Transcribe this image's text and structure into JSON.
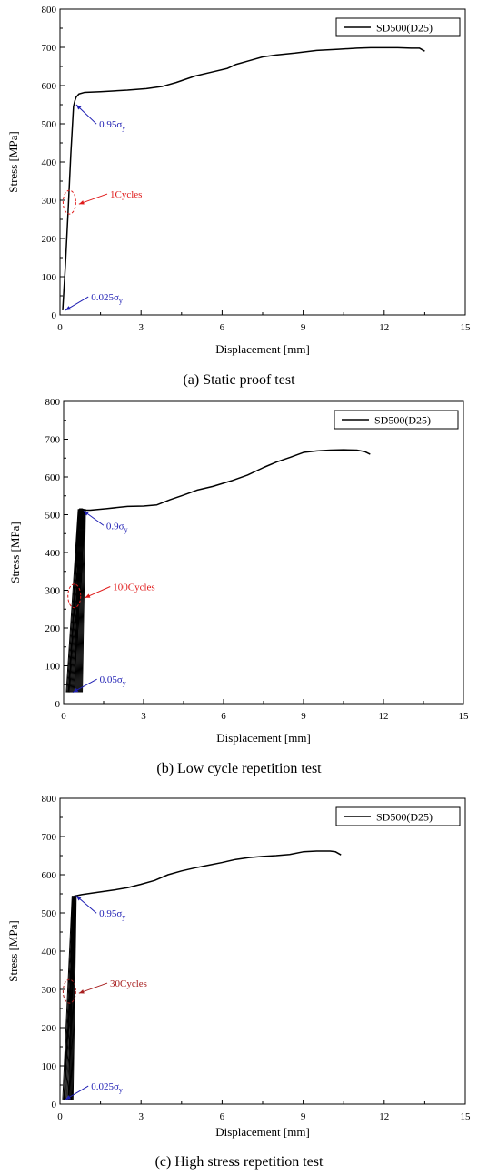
{
  "chart_data": [
    {
      "type": "line",
      "caption": "(a) Static proof test",
      "xlabel": "Displacement [mm]",
      "ylabel": "Stress [MPa]",
      "xlim": [
        0,
        15
      ],
      "ylim": [
        0,
        800
      ],
      "xticks": [
        0,
        3,
        6,
        9,
        12,
        15
      ],
      "yticks": [
        0,
        100,
        200,
        300,
        400,
        500,
        600,
        700,
        800
      ],
      "grid": false,
      "legend_position": "top-right",
      "series": [
        {
          "name": "SD500(D25)",
          "color": "#000000",
          "x": [
            0.1,
            0.2,
            0.3,
            0.4,
            0.5,
            0.55,
            0.6,
            0.7,
            0.9,
            1.5,
            2.5,
            3.2,
            3.8,
            4.3,
            5.0,
            5.6,
            6.2,
            6.5,
            7.0,
            7.5,
            8.0,
            8.7,
            9.5,
            10.3,
            11.0,
            11.5,
            12.0,
            12.5,
            13.0,
            13.3,
            13.5
          ],
          "y": [
            12,
            130,
            270,
            420,
            545,
            560,
            570,
            578,
            582,
            584,
            588,
            592,
            598,
            608,
            625,
            635,
            645,
            655,
            665,
            675,
            680,
            685,
            692,
            695,
            698,
            699,
            699,
            699,
            698,
            698,
            690
          ]
        }
      ],
      "cycle_loops": [],
      "annotations": [
        {
          "text": "0.95",
          "sigma": "σ",
          "sub": "y",
          "color": "#1f1fb4",
          "point": [
            0.6,
            550
          ],
          "label_at": [
            1.45,
            490
          ]
        },
        {
          "text": "1Cycles",
          "color": "#e01b1b",
          "point": [
            0.7,
            290
          ],
          "label_at": [
            1.85,
            307
          ],
          "circle": [
            0.35,
            295
          ]
        },
        {
          "text": "0.025",
          "sigma": "σ",
          "sub": "y",
          "color": "#1f1fb4",
          "point": [
            0.2,
            12
          ],
          "label_at": [
            1.15,
            38
          ]
        }
      ]
    },
    {
      "type": "line",
      "caption": "(b) Low cycle repetition test",
      "xlabel": "Displacement [mm]",
      "ylabel": "Stress [MPa]",
      "xlim": [
        0,
        15
      ],
      "ylim": [
        0,
        800
      ],
      "xticks": [
        0,
        3,
        6,
        9,
        12,
        15
      ],
      "yticks": [
        0,
        100,
        200,
        300,
        400,
        500,
        600,
        700,
        800
      ],
      "grid": false,
      "legend_position": "top-right",
      "series": [
        {
          "name": "SD500(D25)",
          "color": "#000000",
          "x": [
            0.2,
            0.35,
            0.5,
            0.6,
            0.7,
            0.8,
            1.0,
            1.6,
            2.4,
            3.0,
            3.5,
            4.0,
            4.5,
            5.0,
            5.6,
            6.3,
            6.9,
            7.5,
            8.0,
            8.5,
            9.0,
            9.5,
            10.0,
            10.5,
            11.0,
            11.3,
            11.5
          ],
          "y": [
            30,
            200,
            430,
            515,
            515,
            512,
            512,
            516,
            522,
            523,
            526,
            540,
            552,
            565,
            575,
            590,
            605,
            625,
            640,
            652,
            665,
            669,
            671,
            672,
            671,
            667,
            660
          ]
        }
      ],
      "cycle_loops": [
        {
          "x_lo_start": [
            0.1,
            0.38
          ],
          "x_hi_start": [
            0.55,
            0.82
          ],
          "y_range": [
            30,
            515
          ],
          "count": 9
        }
      ],
      "annotations": [
        {
          "text": "0.9",
          "sigma": "σ",
          "sub": "y",
          "color": "#1f1fb4",
          "point": [
            0.75,
            510
          ],
          "label_at": [
            1.6,
            462
          ]
        },
        {
          "text": "100Cycles",
          "color": "#e01b1b",
          "point": [
            0.8,
            280
          ],
          "label_at": [
            1.85,
            300
          ],
          "circle": [
            0.4,
            285
          ]
        },
        {
          "text": "0.05",
          "sigma": "σ",
          "sub": "y",
          "color": "#1f1fb4",
          "point": [
            0.35,
            30
          ],
          "label_at": [
            1.35,
            55
          ]
        }
      ]
    },
    {
      "type": "line",
      "caption": "(c) High stress repetition test",
      "xlabel": "Displacement [mm]",
      "ylabel": "Stress [MPa]",
      "xlim": [
        0,
        15
      ],
      "ylim": [
        0,
        800
      ],
      "xticks": [
        0,
        3,
        6,
        9,
        12,
        15
      ],
      "yticks": [
        0,
        100,
        200,
        300,
        400,
        500,
        600,
        700,
        800
      ],
      "grid": false,
      "legend_position": "top-right",
      "series": [
        {
          "name": "SD500(D25)",
          "color": "#000000",
          "x": [
            0.15,
            0.3,
            0.45,
            0.55,
            0.6,
            0.8,
            1.2,
            2.0,
            2.5,
            3.0,
            3.5,
            4.0,
            4.5,
            5.0,
            5.5,
            6.0,
            6.5,
            7.0,
            7.5,
            8.0,
            8.5,
            9.0,
            9.5,
            10.0,
            10.2,
            10.4
          ],
          "y": [
            12,
            200,
            420,
            545,
            545,
            548,
            552,
            560,
            566,
            575,
            585,
            600,
            610,
            618,
            625,
            632,
            640,
            645,
            648,
            650,
            653,
            660,
            662,
            662,
            660,
            652
          ]
        }
      ],
      "cycle_loops": [
        {
          "x_lo_start": [
            0.1,
            0.3
          ],
          "x_hi_start": [
            0.45,
            0.6
          ],
          "y_range": [
            12,
            545
          ],
          "count": 6
        }
      ],
      "annotations": [
        {
          "text": "0.95",
          "sigma": "σ",
          "sub": "y",
          "color": "#1f1fb4",
          "point": [
            0.6,
            545
          ],
          "label_at": [
            1.45,
            490
          ]
        },
        {
          "text": "30Cycles",
          "color": "#a82020",
          "point": [
            0.7,
            290
          ],
          "label_at": [
            1.85,
            307
          ],
          "circle": [
            0.35,
            295
          ]
        },
        {
          "text": "0.025",
          "sigma": "σ",
          "sub": "y",
          "color": "#1f1fb4",
          "point": [
            0.2,
            12
          ],
          "label_at": [
            1.15,
            38
          ]
        }
      ]
    }
  ]
}
